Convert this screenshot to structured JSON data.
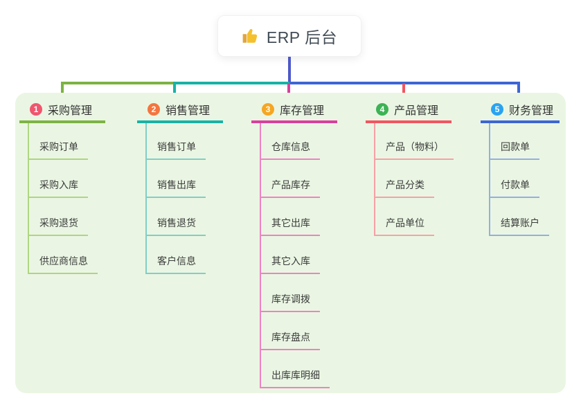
{
  "root": {
    "title": "ERP 后台",
    "icon": "thumbs-up-icon"
  },
  "branches": [
    {
      "index": "1",
      "title": "采购管理",
      "badge_color": "#f0566e",
      "line_color": "#7cb342",
      "child_line_color": "#aed581",
      "children": [
        "采购订单",
        "采购入库",
        "采购退货",
        "供应商信息"
      ]
    },
    {
      "index": "2",
      "title": "销售管理",
      "badge_color": "#f4753f",
      "line_color": "#17b3a6",
      "child_line_color": "#80cec6",
      "children": [
        "销售订单",
        "销售出库",
        "销售退货",
        "客户信息"
      ]
    },
    {
      "index": "3",
      "title": "库存管理",
      "badge_color": "#f6a623",
      "line_color": "#d8409c",
      "child_line_color": "#ee82c4",
      "children": [
        "仓库信息",
        "产品库存",
        "其它出库",
        "其它入库",
        "库存调拨",
        "库存盘点",
        "出库库明细"
      ]
    },
    {
      "index": "4",
      "title": "产品管理",
      "badge_color": "#3cb354",
      "line_color": "#f25560",
      "child_line_color": "#f8a0a6",
      "children": [
        "产品（物料）",
        "产品分类",
        "产品单位"
      ]
    },
    {
      "index": "5",
      "title": "财务管理",
      "badge_color": "#2aa3f0",
      "line_color": "#3d66d4",
      "child_line_color": "#93afe0",
      "children": [
        "回款单",
        "付款单",
        "结算账户"
      ]
    }
  ],
  "colors": {
    "canvas-bg": "#ffffff",
    "group-bg": "#eaf6e3",
    "root-card-bg": "#ffffff",
    "root-text": "#424c56",
    "title-text": "#333333",
    "child-text": "#3b3b3b",
    "root-line": "#4d58c9",
    "thumb-main": "#f5c02e",
    "thumb-dark": "#e2a63d"
  }
}
